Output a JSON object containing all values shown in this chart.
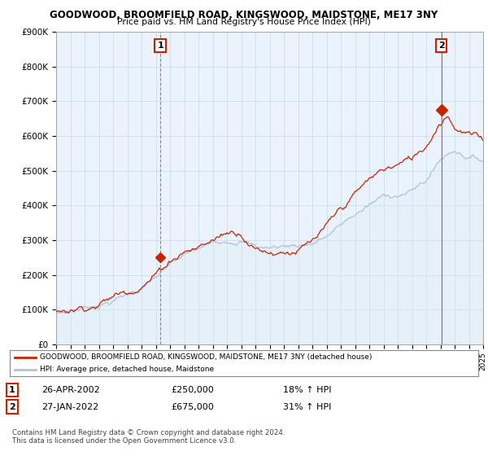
{
  "title": "GOODWOOD, BROOMFIELD ROAD, KINGSWOOD, MAIDSTONE, ME17 3NY",
  "subtitle": "Price paid vs. HM Land Registry's House Price Index (HPI)",
  "ylim": [
    0,
    900000
  ],
  "yticks": [
    0,
    100000,
    200000,
    300000,
    400000,
    500000,
    600000,
    700000,
    800000,
    900000
  ],
  "ytick_labels": [
    "£0",
    "£100K",
    "£200K",
    "£300K",
    "£400K",
    "£500K",
    "£600K",
    "£700K",
    "£800K",
    "£900K"
  ],
  "sale1_date_x": 2002.32,
  "sale1_price": 250000,
  "sale2_date_x": 2022.07,
  "sale2_price": 675000,
  "hpi_color": "#aac4e0",
  "hpi_fill_color": "#daeaf7",
  "price_color": "#cc2200",
  "dashed_color": "#dd4444",
  "background_color": "#ffffff",
  "plot_bg_color": "#eaf3fb",
  "legend_label_red": "GOODWOOD, BROOMFIELD ROAD, KINGSWOOD, MAIDSTONE, ME17 3NY (detached house)",
  "legend_label_blue": "HPI: Average price, detached house, Maidstone",
  "annotation1_label": "1",
  "annotation2_label": "2",
  "table_row1": [
    "1",
    "26-APR-2002",
    "£250,000",
    "18% ↑ HPI"
  ],
  "table_row2": [
    "2",
    "27-JAN-2022",
    "£675,000",
    "31% ↑ HPI"
  ],
  "footer": "Contains HM Land Registry data © Crown copyright and database right 2024.\nThis data is licensed under the Open Government Licence v3.0.",
  "xmin": 1995,
  "xmax": 2025
}
